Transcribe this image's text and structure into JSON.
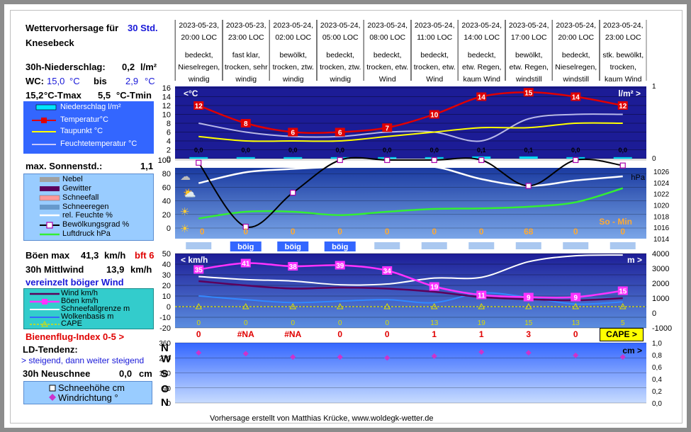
{
  "header": {
    "title": "Wettervorhersage für",
    "hours": "30 Std.",
    "location": "Knesebeck",
    "precip_label": "30h-Niederschlag:",
    "precip_value": "0,2",
    "precip_unit": "l/m²",
    "wc_label": "WC:",
    "wc_from": "15,0",
    "wc_unit": "°C",
    "wc_bis": "bis",
    "wc_to": "2,9",
    "wc_to_unit": "°C",
    "tmax": "15,2",
    "tmax_label": "°C-Tmax",
    "tmin": "5,5",
    "tmin_label": "°C-Tmin"
  },
  "columns": [
    {
      "date": "2023-05-23,",
      "time": "20:00 LOC",
      "w1": "bedeckt,",
      "w2": "Nieselregen,",
      "w3": "windig"
    },
    {
      "date": "2023-05-23,",
      "time": "23:00 LOC",
      "w1": "fast klar,",
      "w2": "trocken, sehr",
      "w3": "windig"
    },
    {
      "date": "2023-05-24,",
      "time": "02:00 LOC",
      "w1": "bewölkt,",
      "w2": "trocken, ztw.",
      "w3": "windig"
    },
    {
      "date": "2023-05-24,",
      "time": "05:00 LOC",
      "w1": "bedeckt,",
      "w2": "trocken, ztw.",
      "w3": "windig"
    },
    {
      "date": "2023-05-24,",
      "time": "08:00 LOC",
      "w1": "bedeckt,",
      "w2": "trocken, etw.",
      "w3": "Wind"
    },
    {
      "date": "2023-05-24,",
      "time": "11:00 LOC",
      "w1": "bedeckt,",
      "w2": "trocken, etw.",
      "w3": "Wind"
    },
    {
      "date": "2023-05-24,",
      "time": "14:00 LOC",
      "w1": "bedeckt,",
      "w2": "etw. Regen,",
      "w3": "kaum Wind"
    },
    {
      "date": "2023-05-24,",
      "time": "17:00 LOC",
      "w1": "bewölkt,",
      "w2": "etw. Regen,",
      "w3": "windstill"
    },
    {
      "date": "2023-05-24,",
      "time": "20:00 LOC",
      "w1": "bedeckt,",
      "w2": "Nieselregen,",
      "w3": "windstill"
    },
    {
      "date": "2023-05-24,",
      "time": "23:00 LOC",
      "w1": "stk. bewölkt,",
      "w2": "trocken,",
      "w3": "kaum Wind"
    }
  ],
  "sun": {
    "label": "max. Sonnenstd.:",
    "value": "1,1"
  },
  "wind_info": {
    "gust_label": "Böen max",
    "gust_value": "41,3",
    "gust_unit": "km/h",
    "gust_bft": "bft 6",
    "mean_label": "30h Mittlwind",
    "mean_value": "13,9",
    "mean_unit": "km/h",
    "note": "vereinzelt böiger Wind"
  },
  "bee": {
    "label": "Bienenflug-Index 0-5 >",
    "values": [
      "0",
      "#NA",
      "#NA",
      "0",
      "0",
      "1",
      "1",
      "3",
      "0"
    ],
    "cape_button": "CAPE >"
  },
  "ld": {
    "label": "LD-Tendenz:",
    "value": "> steigend, dann weiter steigend"
  },
  "snow": {
    "label": "30h Neuschnee",
    "value": "0,0",
    "unit": "cm"
  },
  "legend1": [
    "Niederschlag l/m²",
    "Temperatur°C",
    "Taupunkt °C",
    "Feuchtetemperatur °C"
  ],
  "legend2": [
    "Nebel",
    "Gewitter",
    "Schneefall",
    "Schneeregen",
    "rel. Feuchte %",
    "Bewölkungsgrad %",
    "Luftdruck hPa"
  ],
  "legend3": [
    "Wind km/h",
    "Böen km/h",
    "Schneefallgrenze m",
    "Wolkenbasis m",
    "CAPE"
  ],
  "legend4": [
    "Schneehöhe cm",
    "Windrichtung °"
  ],
  "footer": "Vorhersage erstellt von Matthias Krücke, www.woldegk-wetter.de",
  "colors": {
    "panel_blue": "#1c1c96",
    "legend_blue": "#3366ff",
    "legend_light": "#99ccff",
    "legend_teal": "#33cccc"
  },
  "chart_data": [
    {
      "type": "line",
      "title": "",
      "left_label": "<°C",
      "right_label": "l/m² >",
      "ylim": [
        0,
        16
      ],
      "y_ticks": [
        "0",
        "2",
        "4",
        "6",
        "8",
        "10",
        "12",
        "14",
        "16"
      ],
      "y2lim": [
        0,
        1
      ],
      "y2_ticks": [
        "0",
        "1"
      ],
      "x": [
        "20:00",
        "23:00",
        "02:00",
        "05:00",
        "08:00",
        "11:00",
        "14:00",
        "17:00",
        "20:00",
        "23:00"
      ],
      "series": [
        {
          "name": "Temperatur°C",
          "values": [
            12,
            8,
            6,
            6,
            7,
            10,
            14,
            15,
            14,
            12
          ]
        },
        {
          "name": "Taupunkt °C",
          "values": [
            5,
            4,
            4,
            4,
            5,
            6,
            7,
            7,
            8,
            8
          ]
        },
        {
          "name": "Feuchtetemperatur °C",
          "values": [
            8,
            6,
            5,
            5,
            6,
            6,
            4,
            9,
            10,
            10
          ]
        },
        {
          "name": "Niederschlag l/m²",
          "values": [
            0.0,
            0.0,
            0.0,
            0.0,
            0.0,
            0.0,
            0.1,
            0.1,
            0.0,
            0.0
          ]
        }
      ],
      "precip_labels": [
        "0,0",
        "0,0",
        "0,0",
        "0,0",
        "0,0",
        "0,0",
        "0,1",
        "0,1",
        "0,0",
        "0,0"
      ],
      "temp_labels": [
        "12",
        "8",
        "6",
        "6",
        "7",
        "10",
        "14",
        "15",
        "14",
        "12"
      ]
    },
    {
      "type": "line",
      "title": "",
      "ylim": [
        0,
        100
      ],
      "y_ticks": [
        "0",
        "20",
        "40",
        "60",
        "80",
        "100"
      ],
      "y2lim": [
        1014,
        1026
      ],
      "y2_ticks": [
        "1014",
        "1016",
        "1018",
        "1020",
        "1022",
        "1024",
        "1026"
      ],
      "right_label": "hPa",
      "so_min_label": "So - Min",
      "series": [
        {
          "name": "Bewölkungsgrad %",
          "values": [
            96,
            2,
            52,
            100,
            100,
            100,
            100,
            62,
            100,
            92
          ]
        },
        {
          "name": "rel. Feuchte %",
          "values": [
            66,
            82,
            87,
            90,
            90,
            90,
            72,
            62,
            70,
            76
          ]
        },
        {
          "name": "Luftdruck hPa",
          "values": [
            1017.6,
            1018.8,
            1018.8,
            1018.2,
            1018.8,
            1019.3,
            1019.4,
            1019.7,
            1020.5,
            1023
          ]
        }
      ],
      "sun_minutes": [
        "0",
        "0",
        "0",
        "0",
        "0",
        "0",
        "0",
        "68",
        "0",
        "0"
      ],
      "gust_flags": [
        "",
        "böig",
        "böig",
        "böig",
        "",
        "",
        "",
        "",
        "",
        ""
      ]
    },
    {
      "type": "line",
      "title": "",
      "left_label": "< km/h",
      "right_label": "m >",
      "ylim": [
        -20,
        50
      ],
      "y_ticks": [
        "-20",
        "-10",
        "0",
        "10",
        "20",
        "30",
        "40",
        "50"
      ],
      "y2lim": [
        -1000,
        4000
      ],
      "y2_ticks": [
        "-1000",
        "0",
        "1000",
        "2000",
        "3000",
        "4000"
      ],
      "series": [
        {
          "name": "Böen km/h",
          "values": [
            35,
            41,
            38,
            39,
            34,
            19,
            11,
            9,
            9,
            15
          ]
        },
        {
          "name": "Wind km/h",
          "values": [
            24,
            20,
            17,
            18,
            17,
            14,
            9,
            7,
            6,
            8
          ]
        },
        {
          "name": "Schneefallgrenze m",
          "values": [
            2450,
            2250,
            2150,
            1900,
            1950,
            2350,
            2400,
            3450,
            3850,
            3900
          ]
        },
        {
          "name": "Wolkenbasis m",
          "values": [
            1150,
            900,
            700,
            800,
            900,
            700,
            1350,
            1050,
            600,
            750
          ]
        },
        {
          "name": "CAPE",
          "values": [
            0,
            0,
            0,
            0,
            0,
            13,
            19,
            15,
            13,
            5
          ]
        }
      ],
      "gust_labels": [
        "35",
        "41",
        "38",
        "39",
        "34",
        "19",
        "11",
        "9",
        "9",
        "15"
      ],
      "cape_labels": [
        "0",
        "0",
        "0",
        "0",
        "0",
        "13",
        "19",
        "15",
        "13",
        "5"
      ]
    },
    {
      "type": "scatter",
      "title": "",
      "right_label": "cm >",
      "ylim": [
        0,
        360
      ],
      "y_ticks": [
        "0",
        "90",
        "180",
        "270",
        "360"
      ],
      "dir_labels": [
        "N",
        "W",
        "S",
        "O",
        "N"
      ],
      "y2lim": [
        0,
        1
      ],
      "y2_ticks": [
        "0,0",
        "0,2",
        "0,4",
        "0,6",
        "0,8",
        "1,0"
      ],
      "series": [
        {
          "name": "Windrichtung °",
          "values": [
            300,
            295,
            275,
            275,
            270,
            280,
            305,
            300,
            285,
            275
          ]
        },
        {
          "name": "Schneehöhe cm",
          "values": [
            0,
            0,
            0,
            0,
            0,
            0,
            0,
            0,
            0,
            0
          ]
        }
      ]
    }
  ]
}
